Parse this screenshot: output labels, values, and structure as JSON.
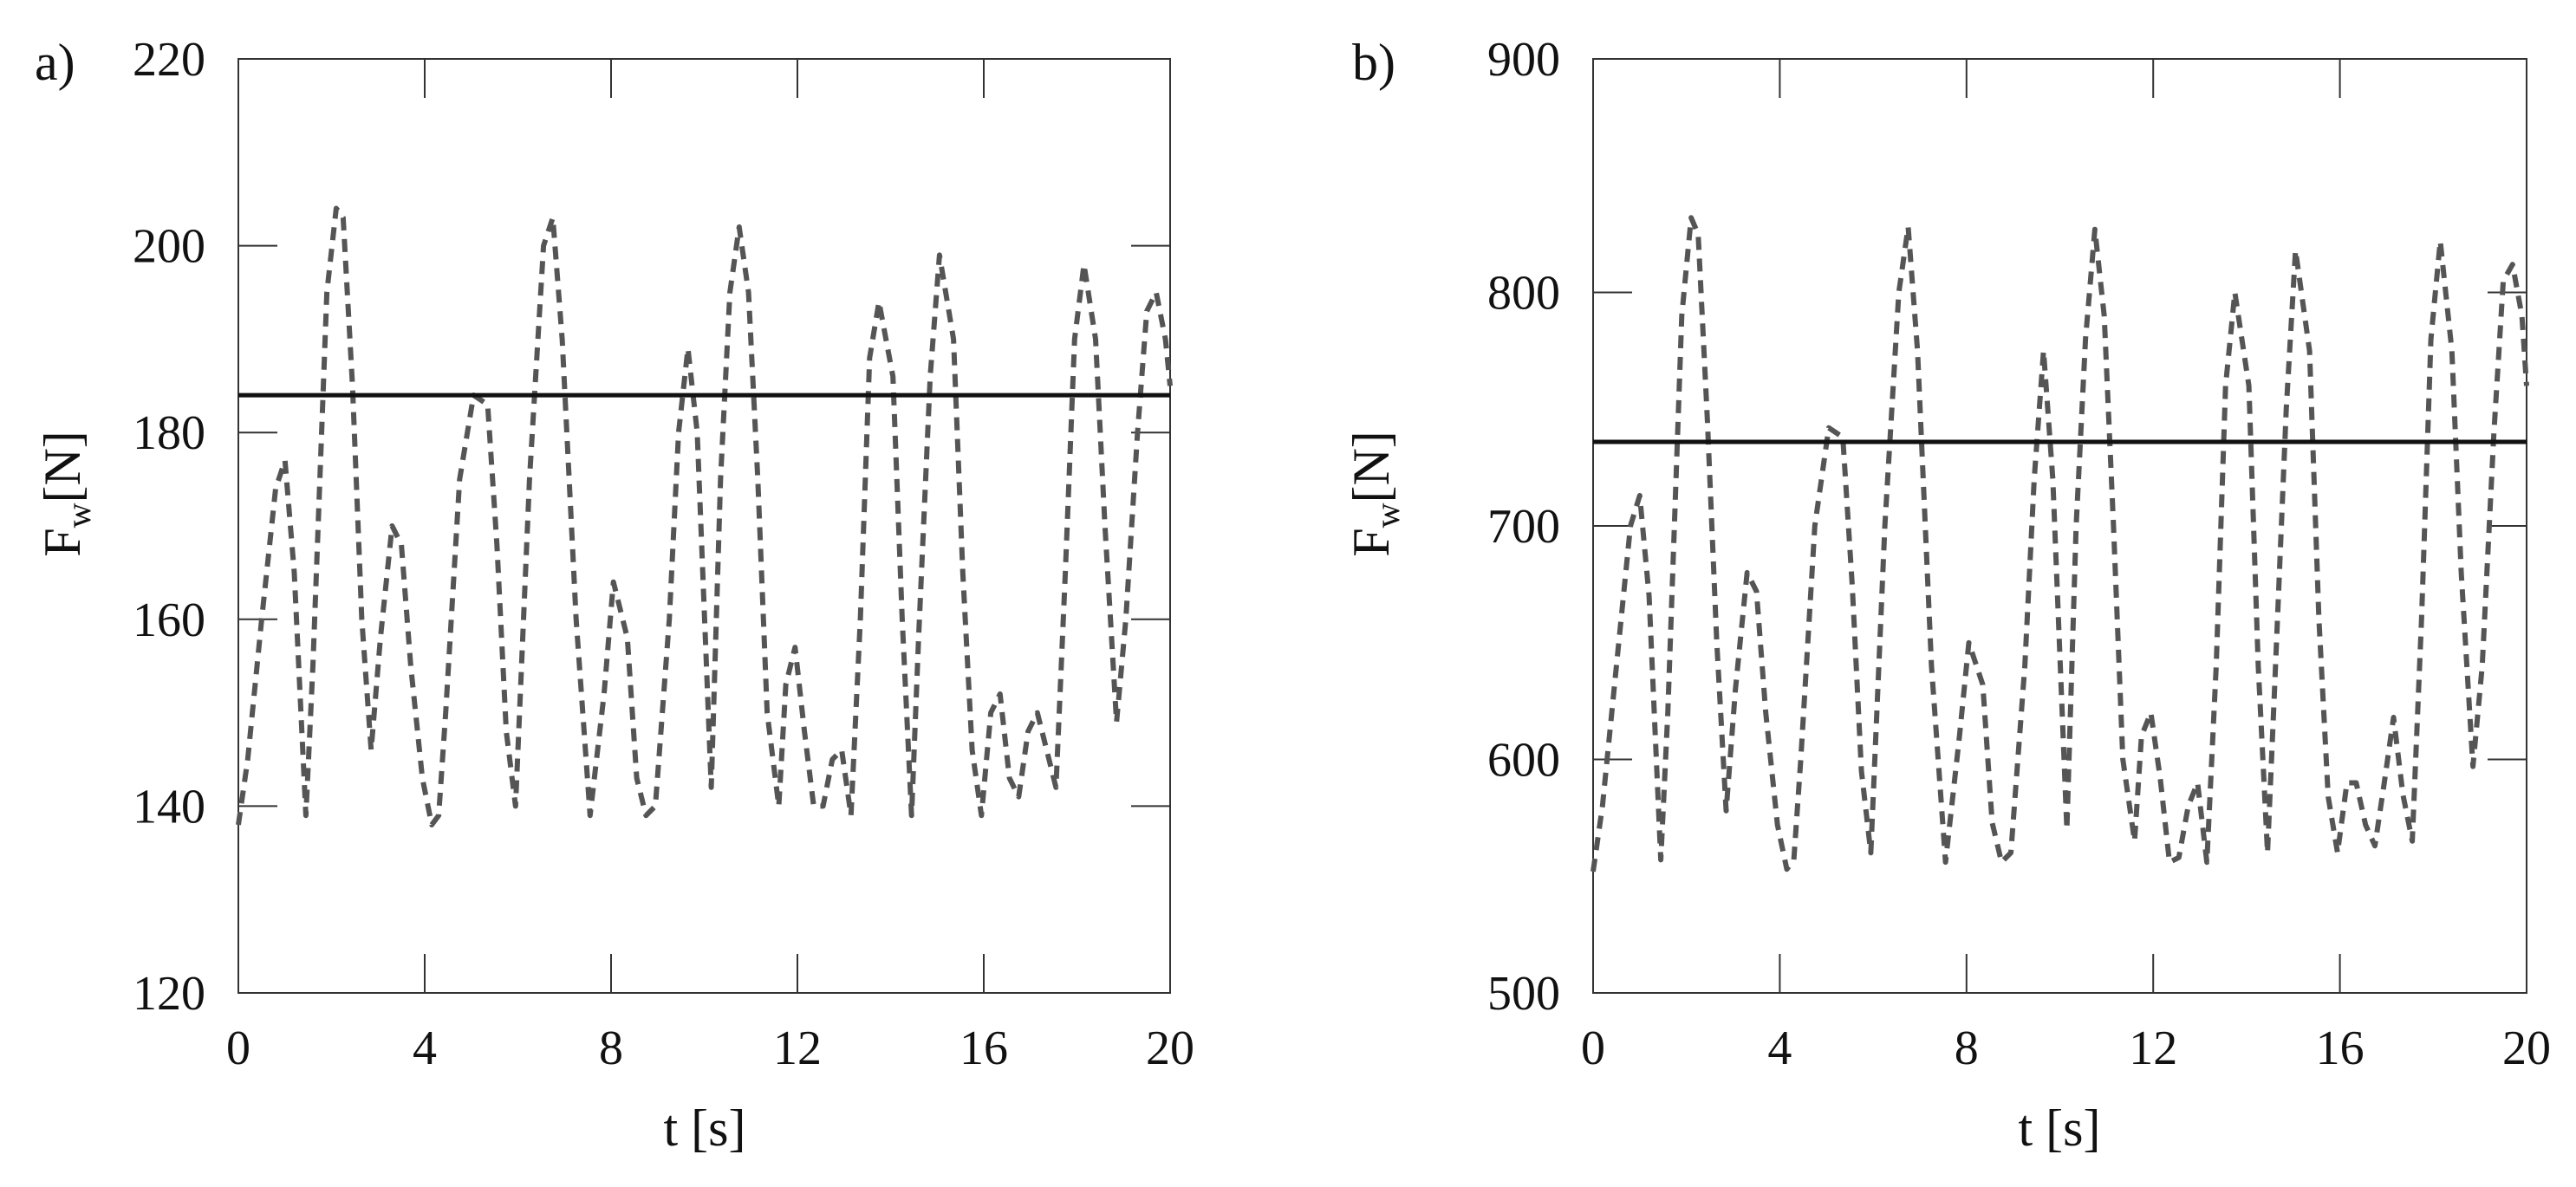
{
  "figure": {
    "panels": [
      {
        "panel_label": "a)",
        "xlabel": "t [s]",
        "ylabel_main": "F",
        "ylabel_sub": "w",
        "ylabel_unit": "[N]"
      },
      {
        "panel_label": "b)",
        "xlabel": "t [s]",
        "ylabel_main": "F",
        "ylabel_sub": "w",
        "ylabel_unit": "[N]"
      }
    ]
  },
  "chart_data": [
    {
      "type": "line",
      "panel": "a)",
      "xlabel": "t [s]",
      "ylabel": "Fw[N]",
      "xlim": [
        0,
        20
      ],
      "ylim": [
        120,
        220
      ],
      "xticks": [
        0,
        4,
        8,
        12,
        16,
        20
      ],
      "yticks": [
        120,
        140,
        160,
        180,
        200,
        220
      ],
      "grid": false,
      "series": [
        {
          "style": "dashed",
          "color": "#555555",
          "x": [
            0,
            0.2,
            0.5,
            0.8,
            1.0,
            1.2,
            1.45,
            1.6,
            1.9,
            2.1,
            2.25,
            2.45,
            2.65,
            2.85,
            3.05,
            3.3,
            3.5,
            3.7,
            3.95,
            4.15,
            4.3,
            4.45,
            4.75,
            5.05,
            5.35,
            5.55,
            5.75,
            5.95,
            6.25,
            6.55,
            6.75,
            6.95,
            7.25,
            7.55,
            7.85,
            8.05,
            8.35,
            8.55,
            8.75,
            8.95,
            9.25,
            9.45,
            9.65,
            9.85,
            10.15,
            10.35,
            10.55,
            10.75,
            10.95,
            11.15,
            11.35,
            11.6,
            11.75,
            11.95,
            12.15,
            12.35,
            12.55,
            12.75,
            12.95,
            13.15,
            13.35,
            13.55,
            13.75,
            14.05,
            14.25,
            14.45,
            14.6,
            14.85,
            15.05,
            15.35,
            15.55,
            15.75,
            15.95,
            16.15,
            16.35,
            16.55,
            16.75,
            16.95,
            17.15,
            17.35,
            17.55,
            17.75,
            17.95,
            18.15,
            18.4,
            18.6,
            18.85,
            19.05,
            19.3,
            19.5,
            19.7,
            19.9,
            20.0
          ],
          "y": [
            138,
            145,
            160,
            174,
            177,
            165,
            139,
            155,
            195,
            204,
            203,
            185,
            160,
            146,
            158,
            170,
            168,
            155,
            143,
            138,
            139,
            150,
            175,
            184,
            183,
            168,
            148,
            140,
            175,
            200,
            203,
            190,
            160,
            139,
            152,
            164,
            158,
            143,
            139,
            140,
            160,
            180,
            189,
            180,
            142,
            175,
            195,
            202,
            195,
            175,
            150,
            140,
            153,
            157,
            148,
            140,
            140,
            145,
            146,
            139,
            160,
            188,
            194,
            186,
            160,
            139,
            158,
            186,
            199,
            190,
            165,
            146,
            139,
            150,
            152,
            143,
            141,
            148,
            150,
            146,
            142,
            165,
            190,
            198,
            190,
            170,
            149,
            160,
            180,
            193,
            195,
            190,
            185
          ]
        },
        {
          "style": "solid",
          "color": "#111111",
          "x": [
            0,
            20
          ],
          "y": [
            184,
            184
          ]
        }
      ]
    },
    {
      "type": "line",
      "panel": "b)",
      "xlabel": "t [s]",
      "ylabel": "Fw[N]",
      "xlim": [
        0,
        20
      ],
      "ylim": [
        500,
        900
      ],
      "xticks": [
        0,
        4,
        8,
        12,
        16,
        20
      ],
      "yticks": [
        500,
        600,
        700,
        800,
        900
      ],
      "grid": false,
      "series": [
        {
          "style": "dashed",
          "color": "#555555",
          "x": [
            0,
            0.2,
            0.5,
            0.8,
            1.0,
            1.2,
            1.45,
            1.6,
            1.9,
            2.1,
            2.25,
            2.45,
            2.65,
            2.85,
            3.05,
            3.3,
            3.5,
            3.7,
            3.95,
            4.15,
            4.3,
            4.45,
            4.75,
            5.05,
            5.35,
            5.55,
            5.75,
            5.95,
            6.25,
            6.55,
            6.75,
            6.95,
            7.25,
            7.55,
            7.85,
            8.05,
            8.35,
            8.55,
            8.75,
            8.95,
            9.25,
            9.45,
            9.65,
            9.85,
            10.15,
            10.35,
            10.55,
            10.75,
            10.95,
            11.15,
            11.35,
            11.6,
            11.75,
            11.95,
            12.15,
            12.35,
            12.55,
            12.75,
            12.95,
            13.15,
            13.35,
            13.55,
            13.75,
            14.05,
            14.25,
            14.45,
            14.6,
            14.85,
            15.05,
            15.35,
            15.55,
            15.75,
            15.95,
            16.15,
            16.35,
            16.55,
            16.75,
            16.95,
            17.15,
            17.35,
            17.55,
            17.75,
            17.95,
            18.15,
            18.4,
            18.6,
            18.85,
            19.05,
            19.3,
            19.5,
            19.7,
            19.9,
            20.0
          ],
          "y": [
            552,
            580,
            640,
            700,
            713,
            670,
            557,
            620,
            790,
            832,
            825,
            745,
            650,
            578,
            630,
            680,
            672,
            620,
            572,
            553,
            557,
            600,
            700,
            742,
            738,
            675,
            595,
            560,
            700,
            800,
            828,
            775,
            640,
            556,
            610,
            650,
            632,
            573,
            556,
            560,
            640,
            720,
            775,
            720,
            570,
            700,
            780,
            827,
            790,
            700,
            600,
            565,
            610,
            620,
            592,
            556,
            558,
            580,
            590,
            556,
            640,
            760,
            800,
            760,
            640,
            560,
            630,
            750,
            818,
            775,
            660,
            584,
            560,
            590,
            590,
            572,
            563,
            590,
            618,
            585,
            565,
            660,
            780,
            822,
            775,
            680,
            597,
            640,
            740,
            805,
            812,
            790,
            760
          ]
        },
        {
          "style": "solid",
          "color": "#111111",
          "x": [
            0,
            20
          ],
          "y": [
            736,
            736
          ]
        }
      ]
    }
  ]
}
